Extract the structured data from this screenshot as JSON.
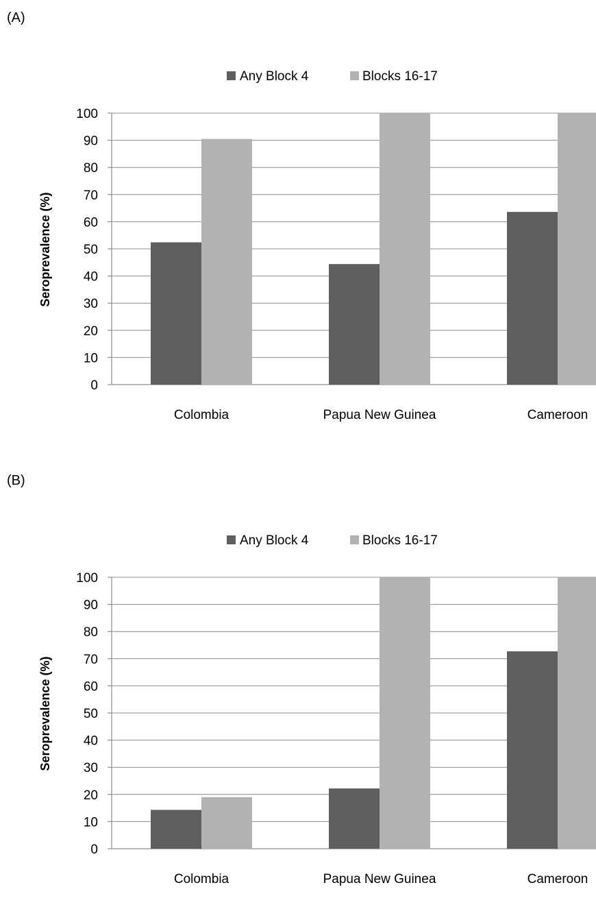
{
  "chart_data": [
    {
      "type": "bar",
      "panel_label": "(A)",
      "categories": [
        "Colombia",
        "Papua New Guinea",
        "Cameroon"
      ],
      "series": [
        {
          "name": "Any Block 4",
          "values": [
            52.4,
            44.4,
            63.6
          ],
          "color": "#5e5e5e"
        },
        {
          "name": "Blocks 16-17",
          "values": [
            90.5,
            100,
            100
          ],
          "color": "#b2b2b2"
        }
      ],
      "ylabel": "Seroprevalence (%)",
      "ylim": [
        0,
        100
      ],
      "yticks": [
        0,
        10,
        20,
        30,
        40,
        50,
        60,
        70,
        80,
        90,
        100
      ],
      "grid": true,
      "legend_position": "top-center"
    },
    {
      "type": "bar",
      "panel_label": "(B)",
      "categories": [
        "Colombia",
        "Papua New Guinea",
        "Cameroon"
      ],
      "series": [
        {
          "name": "Any Block 4",
          "values": [
            14.3,
            22.2,
            72.7
          ],
          "color": "#5e5e5e"
        },
        {
          "name": "Blocks 16-17",
          "values": [
            19.0,
            100,
            100
          ],
          "color": "#b2b2b2"
        }
      ],
      "ylabel": "Seroprevalence (%)",
      "ylim": [
        0,
        100
      ],
      "yticks": [
        0,
        10,
        20,
        30,
        40,
        50,
        60,
        70,
        80,
        90,
        100
      ],
      "grid": true,
      "legend_position": "top-center"
    }
  ]
}
